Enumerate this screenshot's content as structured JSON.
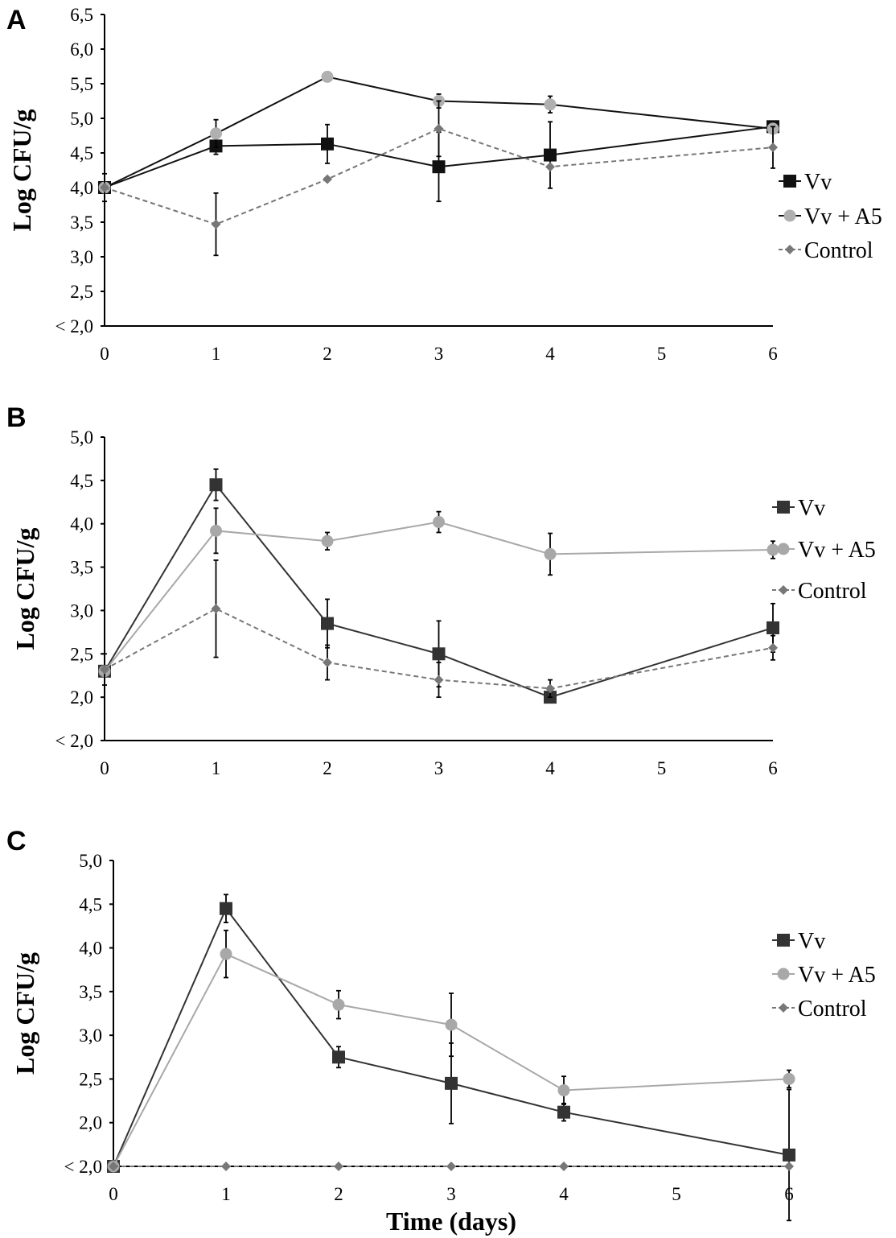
{
  "figure": {
    "xlabel": "Time (days)"
  },
  "chart_data": [
    {
      "type": "line",
      "panel": "A",
      "ylabel": "Log CFU/g",
      "x_ticks": [
        "0",
        "1",
        "2",
        "3",
        "4",
        "5",
        "6"
      ],
      "y_ticks": [
        "< 2,0",
        "2,5",
        "3,0",
        "3,5",
        "4,0",
        "4,5",
        "5,0",
        "5,5",
        "6,0",
        "6,5"
      ],
      "xlim": [
        0,
        6
      ],
      "ylim": [
        2.0,
        6.5
      ],
      "legend": [
        "Vv",
        "Vv + A5",
        "Control"
      ],
      "series": [
        {
          "name": "Vv",
          "color": "#111111",
          "marker": "square",
          "dash": "",
          "x": [
            0,
            1,
            2,
            3,
            4,
            6
          ],
          "values": [
            4.0,
            4.6,
            4.63,
            4.3,
            4.47,
            4.88
          ],
          "errors": [
            0.0,
            0.12,
            0.28,
            0.5,
            0.48,
            0.0
          ]
        },
        {
          "name": "Vv + A5",
          "color": "#111111",
          "marker": "circle",
          "dash": "",
          "x": [
            0,
            1,
            2,
            3,
            4,
            6
          ],
          "values": [
            4.0,
            4.78,
            5.6,
            5.25,
            5.2,
            4.85
          ],
          "errors": [
            0.0,
            0.2,
            0.0,
            0.1,
            0.12,
            0.0
          ]
        },
        {
          "name": "Control",
          "color": "#777777",
          "marker": "diamond",
          "dash": "6,4",
          "x": [
            0,
            1,
            2,
            3,
            4,
            6
          ],
          "values": [
            4.0,
            3.47,
            4.12,
            4.85,
            4.3,
            4.58
          ],
          "errors": [
            0.2,
            0.45,
            0.0,
            0.4,
            0.0,
            0.3
          ]
        }
      ]
    },
    {
      "type": "line",
      "panel": "B",
      "ylabel": "Log CFU/g",
      "x_ticks": [
        "0",
        "1",
        "2",
        "3",
        "4",
        "5",
        "6"
      ],
      "y_ticks": [
        "< 2,0",
        "2,0",
        "2,5",
        "3,0",
        "3,5",
        "4,0",
        "4,5",
        "5,0"
      ],
      "xlim": [
        0,
        6
      ],
      "ylim": [
        1.5,
        5.0
      ],
      "legend": [
        "Vv",
        "Vv + A5",
        "Control"
      ],
      "series": [
        {
          "name": "Vv",
          "color": "#333333",
          "marker": "square",
          "dash": "",
          "x": [
            0,
            1,
            2,
            3,
            4,
            6
          ],
          "values": [
            2.3,
            4.45,
            2.85,
            2.5,
            2.0,
            2.8
          ],
          "errors": [
            0.0,
            0.18,
            0.28,
            0.38,
            0.0,
            0.28
          ]
        },
        {
          "name": "Vv + A5",
          "color": "#a8a8a8",
          "marker": "circle",
          "dash": "",
          "x": [
            0,
            1,
            2,
            3,
            4,
            6
          ],
          "values": [
            2.3,
            3.92,
            3.8,
            4.02,
            3.65,
            3.7
          ],
          "errors": [
            0.0,
            0.26,
            0.1,
            0.12,
            0.24,
            0.1
          ]
        },
        {
          "name": "Control",
          "color": "#777777",
          "marker": "diamond",
          "dash": "6,4",
          "x": [
            0,
            1,
            2,
            3,
            4,
            6
          ],
          "values": [
            2.32,
            3.02,
            2.4,
            2.2,
            2.1,
            2.57
          ],
          "errors": [
            0.18,
            0.56,
            0.2,
            0.2,
            0.1,
            0.14
          ]
        }
      ]
    },
    {
      "type": "line",
      "panel": "C",
      "ylabel": "Log CFU/g",
      "x_ticks": [
        "0",
        "1",
        "2",
        "3",
        "4",
        "5",
        "6"
      ],
      "y_ticks": [
        "< 2,0",
        "2,0",
        "2,5",
        "3,0",
        "3,5",
        "4,0",
        "4,5",
        "5,0"
      ],
      "xlim": [
        0,
        6
      ],
      "ylim": [
        1.5,
        5.0
      ],
      "legend": [
        "Vv",
        "Vv + A5",
        "Control"
      ],
      "series": [
        {
          "name": "Vv",
          "color": "#333333",
          "marker": "square",
          "dash": "",
          "x": [
            0,
            1,
            2,
            3,
            4,
            6
          ],
          "values": [
            1.5,
            4.45,
            2.75,
            2.45,
            2.12,
            1.63
          ],
          "errors": [
            0.0,
            0.16,
            0.12,
            0.46,
            0.1,
            0.75
          ]
        },
        {
          "name": "Vv + A5",
          "color": "#a8a8a8",
          "marker": "circle",
          "dash": "",
          "x": [
            0,
            1,
            2,
            3,
            4,
            6
          ],
          "values": [
            1.5,
            3.93,
            3.35,
            3.12,
            2.37,
            2.5
          ],
          "errors": [
            0.0,
            0.27,
            0.16,
            0.36,
            0.16,
            0.1
          ]
        },
        {
          "name": "Control",
          "color": "#777777",
          "marker": "diamond",
          "dash": "6,4",
          "x": [
            0,
            1,
            2,
            3,
            4,
            6
          ],
          "values": [
            1.5,
            1.5,
            1.5,
            1.5,
            1.5,
            1.5
          ],
          "errors": [
            0.0,
            0.0,
            0.0,
            0.0,
            0.0,
            0.0
          ]
        }
      ]
    }
  ]
}
